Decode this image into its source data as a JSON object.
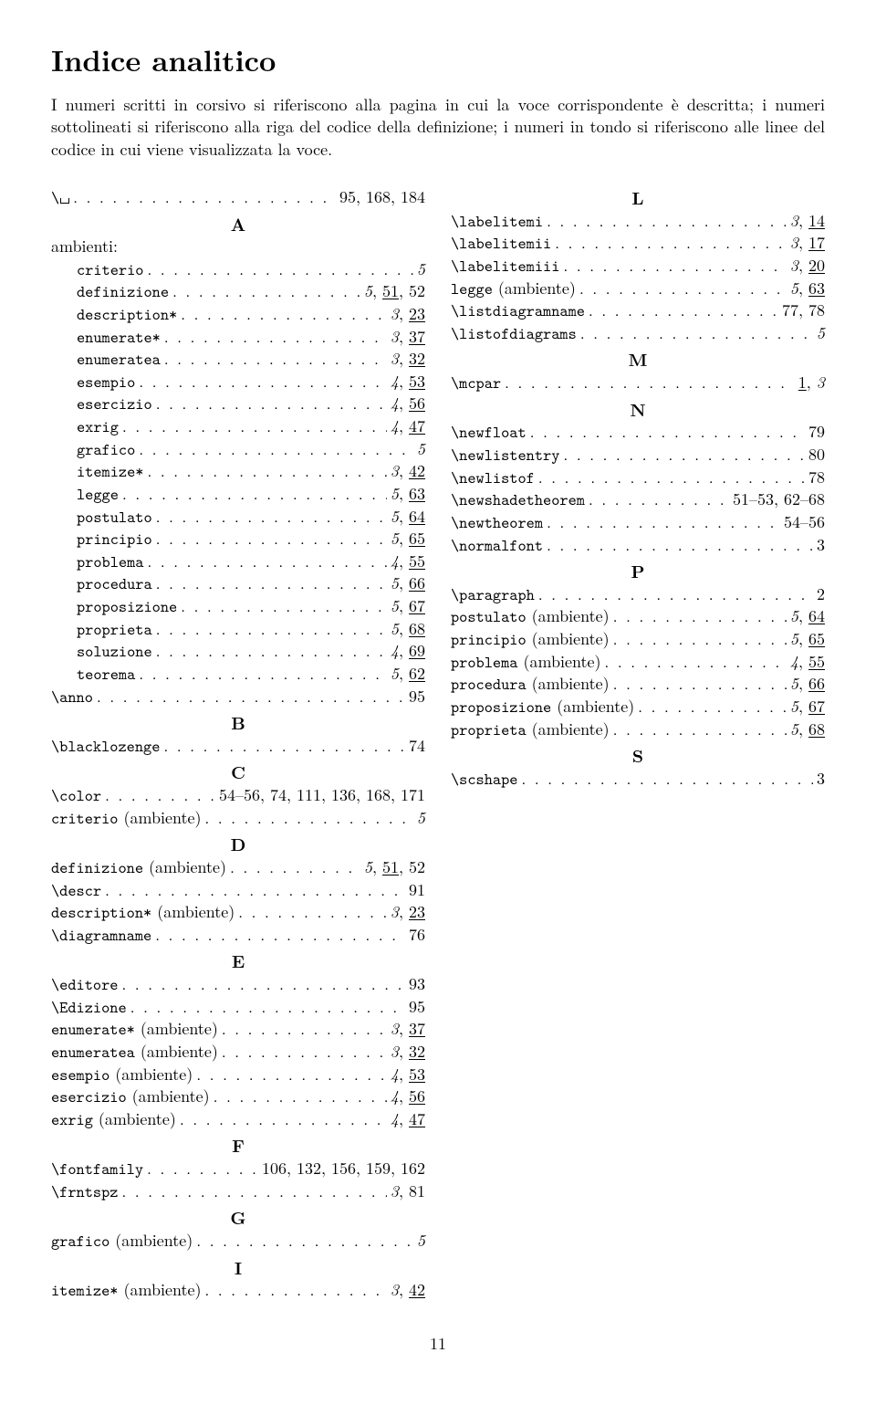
{
  "title": "Indice analitico",
  "intro": "I numeri scritti in corsivo si riferiscono alla pagina in cui la voce corrispondente è descritta; i numeri sottolineati si riferiscono alla riga del codice della definizione; i numeri in tondo si riferiscono alle linee del codice in cui viene visualizzata la voce.",
  "page_number": "11",
  "entries": [
    {
      "kind": "entry",
      "term": [
        {
          "t": "tt",
          "v": "\\"
        },
        {
          "t": "vs"
        }
      ],
      "pages": [
        {
          "v": "95"
        },
        {
          "v": "168"
        },
        {
          "v": "184"
        }
      ]
    },
    {
      "kind": "letter",
      "v": "A"
    },
    {
      "kind": "label",
      "term": [
        {
          "t": "rm",
          "v": "ambienti:"
        }
      ]
    },
    {
      "kind": "sub",
      "term": [
        {
          "t": "tt",
          "v": "criterio"
        }
      ],
      "pages": [
        {
          "v": "5",
          "it": true
        }
      ]
    },
    {
      "kind": "sub",
      "term": [
        {
          "t": "tt",
          "v": "definizione"
        }
      ],
      "pages": [
        {
          "v": "5",
          "it": true
        },
        {
          "v": "51",
          "ul": true
        },
        {
          "v": "52"
        }
      ]
    },
    {
      "kind": "sub",
      "term": [
        {
          "t": "tt",
          "v": "description*"
        }
      ],
      "pages": [
        {
          "v": "3",
          "it": true
        },
        {
          "v": "23",
          "ul": true
        }
      ]
    },
    {
      "kind": "sub",
      "term": [
        {
          "t": "tt",
          "v": "enumerate*"
        }
      ],
      "pages": [
        {
          "v": "3",
          "it": true
        },
        {
          "v": "37",
          "ul": true
        }
      ]
    },
    {
      "kind": "sub",
      "term": [
        {
          "t": "tt",
          "v": "enumeratea"
        }
      ],
      "pages": [
        {
          "v": "3",
          "it": true
        },
        {
          "v": "32",
          "ul": true
        }
      ]
    },
    {
      "kind": "sub",
      "term": [
        {
          "t": "tt",
          "v": "esempio"
        }
      ],
      "pages": [
        {
          "v": "4",
          "it": true
        },
        {
          "v": "53",
          "ul": true
        }
      ]
    },
    {
      "kind": "sub",
      "term": [
        {
          "t": "tt",
          "v": "esercizio"
        }
      ],
      "pages": [
        {
          "v": "4",
          "it": true
        },
        {
          "v": "56",
          "ul": true
        }
      ]
    },
    {
      "kind": "sub",
      "term": [
        {
          "t": "tt",
          "v": "exrig"
        }
      ],
      "pages": [
        {
          "v": "4",
          "it": true
        },
        {
          "v": "47",
          "ul": true
        }
      ]
    },
    {
      "kind": "sub",
      "term": [
        {
          "t": "tt",
          "v": "grafico"
        }
      ],
      "pages": [
        {
          "v": "5",
          "it": true
        }
      ]
    },
    {
      "kind": "sub",
      "term": [
        {
          "t": "tt",
          "v": "itemize*"
        }
      ],
      "pages": [
        {
          "v": "3",
          "it": true
        },
        {
          "v": "42",
          "ul": true
        }
      ]
    },
    {
      "kind": "sub",
      "term": [
        {
          "t": "tt",
          "v": "legge"
        }
      ],
      "pages": [
        {
          "v": "5",
          "it": true
        },
        {
          "v": "63",
          "ul": true
        }
      ]
    },
    {
      "kind": "sub",
      "term": [
        {
          "t": "tt",
          "v": "postulato"
        }
      ],
      "pages": [
        {
          "v": "5",
          "it": true
        },
        {
          "v": "64",
          "ul": true
        }
      ]
    },
    {
      "kind": "sub",
      "term": [
        {
          "t": "tt",
          "v": "principio"
        }
      ],
      "pages": [
        {
          "v": "5",
          "it": true
        },
        {
          "v": "65",
          "ul": true
        }
      ]
    },
    {
      "kind": "sub",
      "term": [
        {
          "t": "tt",
          "v": "problema"
        }
      ],
      "pages": [
        {
          "v": "4",
          "it": true
        },
        {
          "v": "55",
          "ul": true
        }
      ]
    },
    {
      "kind": "sub",
      "term": [
        {
          "t": "tt",
          "v": "procedura"
        }
      ],
      "pages": [
        {
          "v": "5",
          "it": true
        },
        {
          "v": "66",
          "ul": true
        }
      ]
    },
    {
      "kind": "sub",
      "term": [
        {
          "t": "tt",
          "v": "proposizione"
        }
      ],
      "pages": [
        {
          "v": "5",
          "it": true
        },
        {
          "v": "67",
          "ul": true
        }
      ]
    },
    {
      "kind": "sub",
      "term": [
        {
          "t": "tt",
          "v": "proprieta"
        }
      ],
      "pages": [
        {
          "v": "5",
          "it": true
        },
        {
          "v": "68",
          "ul": true
        }
      ]
    },
    {
      "kind": "sub",
      "term": [
        {
          "t": "tt",
          "v": "soluzione"
        }
      ],
      "pages": [
        {
          "v": "4",
          "it": true
        },
        {
          "v": "69",
          "ul": true
        }
      ]
    },
    {
      "kind": "sub",
      "term": [
        {
          "t": "tt",
          "v": "teorema"
        }
      ],
      "pages": [
        {
          "v": "5",
          "it": true
        },
        {
          "v": "62",
          "ul": true
        }
      ]
    },
    {
      "kind": "entry",
      "term": [
        {
          "t": "tt",
          "v": "\\anno"
        }
      ],
      "pages": [
        {
          "v": "95"
        }
      ]
    },
    {
      "kind": "letter",
      "v": "B"
    },
    {
      "kind": "entry",
      "term": [
        {
          "t": "tt",
          "v": "\\blacklozenge"
        }
      ],
      "pages": [
        {
          "v": "74"
        }
      ]
    },
    {
      "kind": "letter",
      "v": "C"
    },
    {
      "kind": "entry",
      "term": [
        {
          "t": "tt",
          "v": "\\color"
        }
      ],
      "pages": [
        {
          "v": "54–56"
        },
        {
          "v": "74"
        },
        {
          "v": "111"
        },
        {
          "v": "136"
        },
        {
          "v": "168"
        },
        {
          "v": "171"
        }
      ]
    },
    {
      "kind": "entry",
      "term": [
        {
          "t": "tt",
          "v": "criterio"
        },
        {
          "t": "rm",
          "v": " (ambiente)"
        }
      ],
      "pages": [
        {
          "v": "5",
          "it": true
        }
      ]
    },
    {
      "kind": "letter",
      "v": "D"
    },
    {
      "kind": "entry",
      "term": [
        {
          "t": "tt",
          "v": "definizione"
        },
        {
          "t": "rm",
          "v": " (ambiente)"
        }
      ],
      "pages": [
        {
          "v": "5",
          "it": true
        },
        {
          "v": "51",
          "ul": true
        },
        {
          "v": "52"
        }
      ]
    },
    {
      "kind": "entry",
      "term": [
        {
          "t": "tt",
          "v": "\\descr"
        }
      ],
      "pages": [
        {
          "v": "91"
        }
      ]
    },
    {
      "kind": "entry",
      "term": [
        {
          "t": "tt",
          "v": "description*"
        },
        {
          "t": "rm",
          "v": " (ambiente)"
        }
      ],
      "pages": [
        {
          "v": "3",
          "it": true
        },
        {
          "v": "23",
          "ul": true
        }
      ]
    },
    {
      "kind": "entry",
      "term": [
        {
          "t": "tt",
          "v": "\\diagramname"
        }
      ],
      "pages": [
        {
          "v": "76"
        }
      ]
    },
    {
      "kind": "letter",
      "v": "E"
    },
    {
      "kind": "entry",
      "term": [
        {
          "t": "tt",
          "v": "\\editore"
        }
      ],
      "pages": [
        {
          "v": "93"
        }
      ]
    },
    {
      "kind": "entry",
      "term": [
        {
          "t": "tt",
          "v": "\\Edizione"
        }
      ],
      "pages": [
        {
          "v": "95"
        }
      ]
    },
    {
      "kind": "entry",
      "term": [
        {
          "t": "tt",
          "v": "enumerate*"
        },
        {
          "t": "rm",
          "v": " (ambiente)"
        }
      ],
      "pages": [
        {
          "v": "3",
          "it": true
        },
        {
          "v": "37",
          "ul": true
        }
      ]
    },
    {
      "kind": "entry",
      "term": [
        {
          "t": "tt",
          "v": "enumeratea"
        },
        {
          "t": "rm",
          "v": " (ambiente)"
        }
      ],
      "pages": [
        {
          "v": "3",
          "it": true
        },
        {
          "v": "32",
          "ul": true
        }
      ]
    },
    {
      "kind": "entry",
      "term": [
        {
          "t": "tt",
          "v": "esempio"
        },
        {
          "t": "rm",
          "v": " (ambiente)"
        }
      ],
      "pages": [
        {
          "v": "4",
          "it": true
        },
        {
          "v": "53",
          "ul": true
        }
      ]
    },
    {
      "kind": "entry",
      "term": [
        {
          "t": "tt",
          "v": "esercizio"
        },
        {
          "t": "rm",
          "v": " (ambiente)"
        }
      ],
      "pages": [
        {
          "v": "4",
          "it": true
        },
        {
          "v": "56",
          "ul": true
        }
      ]
    },
    {
      "kind": "entry",
      "term": [
        {
          "t": "tt",
          "v": "exrig"
        },
        {
          "t": "rm",
          "v": " (ambiente)"
        }
      ],
      "pages": [
        {
          "v": "4",
          "it": true
        },
        {
          "v": "47",
          "ul": true
        }
      ]
    },
    {
      "kind": "letter",
      "v": "F"
    },
    {
      "kind": "entry",
      "term": [
        {
          "t": "tt",
          "v": "\\fontfamily"
        }
      ],
      "pages": [
        {
          "v": "106"
        },
        {
          "v": "132"
        },
        {
          "v": "156"
        },
        {
          "v": "159"
        },
        {
          "v": "162"
        }
      ]
    },
    {
      "kind": "entry",
      "term": [
        {
          "t": "tt",
          "v": "\\frntspz"
        }
      ],
      "pages": [
        {
          "v": "3",
          "it": true
        },
        {
          "v": "81"
        }
      ]
    },
    {
      "kind": "letter",
      "v": "G"
    },
    {
      "kind": "entry",
      "term": [
        {
          "t": "tt",
          "v": "grafico"
        },
        {
          "t": "rm",
          "v": " (ambiente)"
        }
      ],
      "pages": [
        {
          "v": "5",
          "it": true
        }
      ]
    },
    {
      "kind": "letter",
      "v": "I"
    },
    {
      "kind": "entry",
      "term": [
        {
          "t": "tt",
          "v": "itemize*"
        },
        {
          "t": "rm",
          "v": " (ambiente)"
        }
      ],
      "pages": [
        {
          "v": "3",
          "it": true
        },
        {
          "v": "42",
          "ul": true
        }
      ]
    },
    {
      "kind": "letter",
      "v": "L"
    },
    {
      "kind": "entry",
      "term": [
        {
          "t": "tt",
          "v": "\\labelitemi"
        }
      ],
      "pages": [
        {
          "v": "3",
          "it": true
        },
        {
          "v": "14",
          "ul": true
        }
      ]
    },
    {
      "kind": "entry",
      "term": [
        {
          "t": "tt",
          "v": "\\labelitemii"
        }
      ],
      "pages": [
        {
          "v": "3",
          "it": true
        },
        {
          "v": "17",
          "ul": true
        }
      ]
    },
    {
      "kind": "entry",
      "term": [
        {
          "t": "tt",
          "v": "\\labelitemiii"
        }
      ],
      "pages": [
        {
          "v": "3",
          "it": true
        },
        {
          "v": "20",
          "ul": true
        }
      ]
    },
    {
      "kind": "entry",
      "term": [
        {
          "t": "tt",
          "v": "legge"
        },
        {
          "t": "rm",
          "v": " (ambiente)"
        }
      ],
      "pages": [
        {
          "v": "5",
          "it": true
        },
        {
          "v": "63",
          "ul": true
        }
      ]
    },
    {
      "kind": "entry",
      "term": [
        {
          "t": "tt",
          "v": "\\listdiagramname"
        }
      ],
      "pages": [
        {
          "v": "77"
        },
        {
          "v": "78"
        }
      ]
    },
    {
      "kind": "entry",
      "term": [
        {
          "t": "tt",
          "v": "\\listofdiagrams"
        }
      ],
      "pages": [
        {
          "v": "5",
          "it": true
        }
      ]
    },
    {
      "kind": "letter",
      "v": "M"
    },
    {
      "kind": "entry",
      "term": [
        {
          "t": "tt",
          "v": "\\mcpar"
        }
      ],
      "pages": [
        {
          "v": "1",
          "ul": true
        },
        {
          "v": "3",
          "it": true
        }
      ]
    },
    {
      "kind": "letter",
      "v": "N"
    },
    {
      "kind": "entry",
      "term": [
        {
          "t": "tt",
          "v": "\\newfloat"
        }
      ],
      "pages": [
        {
          "v": "79"
        }
      ]
    },
    {
      "kind": "entry",
      "term": [
        {
          "t": "tt",
          "v": "\\newlistentry"
        }
      ],
      "pages": [
        {
          "v": "80"
        }
      ]
    },
    {
      "kind": "entry",
      "term": [
        {
          "t": "tt",
          "v": "\\newlistof"
        }
      ],
      "pages": [
        {
          "v": "78"
        }
      ]
    },
    {
      "kind": "entry",
      "term": [
        {
          "t": "tt",
          "v": "\\newshadetheorem"
        }
      ],
      "pages": [
        {
          "v": "51–53"
        },
        {
          "v": "62–68"
        }
      ]
    },
    {
      "kind": "entry",
      "term": [
        {
          "t": "tt",
          "v": "\\newtheorem"
        }
      ],
      "pages": [
        {
          "v": "54–56"
        }
      ]
    },
    {
      "kind": "entry",
      "term": [
        {
          "t": "tt",
          "v": "\\normalfont"
        }
      ],
      "pages": [
        {
          "v": "3"
        }
      ]
    },
    {
      "kind": "letter",
      "v": "P"
    },
    {
      "kind": "entry",
      "term": [
        {
          "t": "tt",
          "v": "\\paragraph"
        }
      ],
      "pages": [
        {
          "v": "2"
        }
      ]
    },
    {
      "kind": "entry",
      "term": [
        {
          "t": "tt",
          "v": "postulato"
        },
        {
          "t": "rm",
          "v": " (ambiente)"
        }
      ],
      "pages": [
        {
          "v": "5",
          "it": true
        },
        {
          "v": "64",
          "ul": true
        }
      ]
    },
    {
      "kind": "entry",
      "term": [
        {
          "t": "tt",
          "v": "principio"
        },
        {
          "t": "rm",
          "v": " (ambiente)"
        }
      ],
      "pages": [
        {
          "v": "5",
          "it": true
        },
        {
          "v": "65",
          "ul": true
        }
      ]
    },
    {
      "kind": "entry",
      "term": [
        {
          "t": "tt",
          "v": "problema"
        },
        {
          "t": "rm",
          "v": " (ambiente)"
        }
      ],
      "pages": [
        {
          "v": "4",
          "it": true
        },
        {
          "v": "55",
          "ul": true
        }
      ]
    },
    {
      "kind": "entry",
      "term": [
        {
          "t": "tt",
          "v": "procedura"
        },
        {
          "t": "rm",
          "v": " (ambiente)"
        }
      ],
      "pages": [
        {
          "v": "5",
          "it": true
        },
        {
          "v": "66",
          "ul": true
        }
      ]
    },
    {
      "kind": "entry",
      "term": [
        {
          "t": "tt",
          "v": "proposizione"
        },
        {
          "t": "rm",
          "v": " (ambiente)"
        }
      ],
      "pages": [
        {
          "v": "5",
          "it": true
        },
        {
          "v": "67",
          "ul": true
        }
      ]
    },
    {
      "kind": "entry",
      "term": [
        {
          "t": "tt",
          "v": "proprieta"
        },
        {
          "t": "rm",
          "v": " (ambiente)"
        }
      ],
      "pages": [
        {
          "v": "5",
          "it": true
        },
        {
          "v": "68",
          "ul": true
        }
      ]
    },
    {
      "kind": "letter",
      "v": "S"
    },
    {
      "kind": "entry",
      "term": [
        {
          "t": "tt",
          "v": "\\scshape"
        }
      ],
      "pages": [
        {
          "v": "3"
        }
      ]
    }
  ]
}
